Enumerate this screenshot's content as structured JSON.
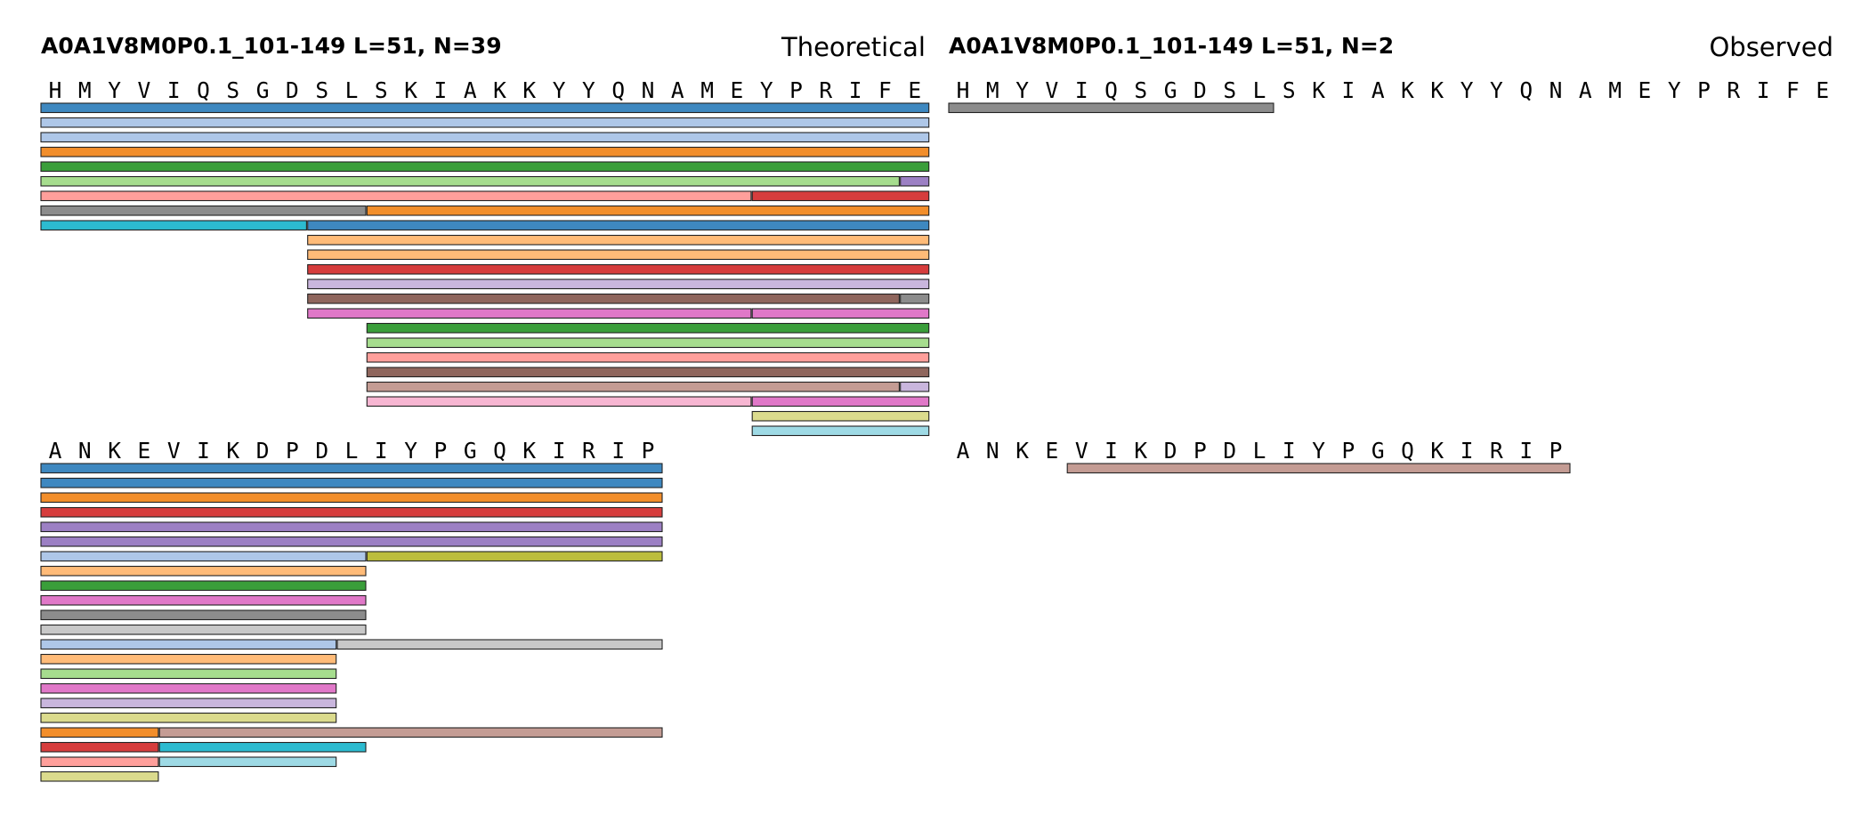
{
  "colors": {
    "blue": "#3e88c0",
    "lightblue": "#aec7e8",
    "orange": "#f28e2b",
    "lightorange": "#ffbb78",
    "green": "#3a9e3a",
    "lightgreen": "#a6dd8e",
    "red": "#d63d3d",
    "pink": "#ff9f9b",
    "purple": "#9c80c4",
    "lavender": "#c9b6dd",
    "brown": "#8f665d",
    "tan": "#c49c94",
    "magenta": "#e078c8",
    "lightpink": "#f7b6d2",
    "gray": "#8c8c8c",
    "lightgray": "#c8c8c8",
    "olive": "#bcbd3c",
    "khaki": "#dbdb8d",
    "cyan": "#2cbbd0",
    "lightcyan": "#9edae5"
  },
  "panels": [
    {
      "id": "theoretical",
      "title": "A0A1V8M0P0.1_101-149  L=51, N=39",
      "label": "Theoretical",
      "rows": [
        {
          "sequence": "HMYVIQSGDSLSKIAKKYYQNAMEYPRIFE",
          "peptides": [
            {
              "start": 1,
              "end": 30,
              "lane": 0,
              "color": "blue"
            },
            {
              "start": 1,
              "end": 30,
              "lane": 1,
              "color": "lightblue"
            },
            {
              "start": 1,
              "end": 30,
              "lane": 2,
              "color": "lightblue"
            },
            {
              "start": 1,
              "end": 30,
              "lane": 3,
              "color": "orange"
            },
            {
              "start": 1,
              "end": 30,
              "lane": 4,
              "color": "green"
            },
            {
              "start": 1,
              "end": 29,
              "lane": 5,
              "color": "lightgreen"
            },
            {
              "start": 30,
              "end": 30,
              "lane": 5,
              "color": "purple"
            },
            {
              "start": 1,
              "end": 24,
              "lane": 6,
              "color": "pink"
            },
            {
              "start": 25,
              "end": 30,
              "lane": 6,
              "color": "red"
            },
            {
              "start": 1,
              "end": 11,
              "lane": 7,
              "color": "gray"
            },
            {
              "start": 12,
              "end": 30,
              "lane": 7,
              "color": "orange"
            },
            {
              "start": 1,
              "end": 9,
              "lane": 8,
              "color": "cyan"
            },
            {
              "start": 10,
              "end": 30,
              "lane": 8,
              "color": "blue"
            },
            {
              "start": 10,
              "end": 30,
              "lane": 9,
              "color": "lightorange"
            },
            {
              "start": 10,
              "end": 30,
              "lane": 10,
              "color": "lightorange"
            },
            {
              "start": 10,
              "end": 30,
              "lane": 11,
              "color": "red"
            },
            {
              "start": 10,
              "end": 30,
              "lane": 12,
              "color": "lavender"
            },
            {
              "start": 10,
              "end": 29,
              "lane": 13,
              "color": "brown"
            },
            {
              "start": 30,
              "end": 30,
              "lane": 13,
              "color": "gray"
            },
            {
              "start": 10,
              "end": 24,
              "lane": 14,
              "color": "magenta"
            },
            {
              "start": 25,
              "end": 30,
              "lane": 14,
              "color": "magenta"
            },
            {
              "start": 12,
              "end": 30,
              "lane": 15,
              "color": "green"
            },
            {
              "start": 12,
              "end": 30,
              "lane": 16,
              "color": "lightgreen"
            },
            {
              "start": 12,
              "end": 30,
              "lane": 17,
              "color": "pink"
            },
            {
              "start": 12,
              "end": 30,
              "lane": 18,
              "color": "brown"
            },
            {
              "start": 12,
              "end": 29,
              "lane": 19,
              "color": "tan"
            },
            {
              "start": 30,
              "end": 30,
              "lane": 19,
              "color": "lavender"
            },
            {
              "start": 12,
              "end": 24,
              "lane": 20,
              "color": "lightpink"
            },
            {
              "start": 25,
              "end": 30,
              "lane": 20,
              "color": "magenta"
            },
            {
              "start": 25,
              "end": 30,
              "lane": 21,
              "color": "khaki"
            },
            {
              "start": 25,
              "end": 30,
              "lane": 22,
              "color": "lightcyan"
            }
          ]
        },
        {
          "sequence": "ANKEVIKDPDLIYPGQKIRIP",
          "peptides": [
            {
              "start": 1,
              "end": 21,
              "lane": 0,
              "color": "blue"
            },
            {
              "start": 1,
              "end": 21,
              "lane": 1,
              "color": "blue"
            },
            {
              "start": 1,
              "end": 21,
              "lane": 2,
              "color": "orange"
            },
            {
              "start": 1,
              "end": 21,
              "lane": 3,
              "color": "red"
            },
            {
              "start": 1,
              "end": 21,
              "lane": 4,
              "color": "purple"
            },
            {
              "start": 1,
              "end": 21,
              "lane": 5,
              "color": "purple"
            },
            {
              "start": 1,
              "end": 11,
              "lane": 6,
              "color": "lightblue"
            },
            {
              "start": 12,
              "end": 21,
              "lane": 6,
              "color": "olive"
            },
            {
              "start": 1,
              "end": 11,
              "lane": 7,
              "color": "lightorange"
            },
            {
              "start": 1,
              "end": 11,
              "lane": 8,
              "color": "green"
            },
            {
              "start": 1,
              "end": 11,
              "lane": 9,
              "color": "magenta"
            },
            {
              "start": 1,
              "end": 11,
              "lane": 10,
              "color": "gray"
            },
            {
              "start": 1,
              "end": 11,
              "lane": 11,
              "color": "lightgray"
            },
            {
              "start": 1,
              "end": 10,
              "lane": 12,
              "color": "lightblue"
            },
            {
              "start": 11,
              "end": 21,
              "lane": 12,
              "color": "lightgray"
            },
            {
              "start": 1,
              "end": 10,
              "lane": 13,
              "color": "lightorange"
            },
            {
              "start": 1,
              "end": 10,
              "lane": 14,
              "color": "lightgreen"
            },
            {
              "start": 1,
              "end": 10,
              "lane": 15,
              "color": "magenta"
            },
            {
              "start": 1,
              "end": 10,
              "lane": 16,
              "color": "lavender"
            },
            {
              "start": 1,
              "end": 10,
              "lane": 17,
              "color": "khaki"
            },
            {
              "start": 1,
              "end": 4,
              "lane": 18,
              "color": "orange"
            },
            {
              "start": 5,
              "end": 21,
              "lane": 18,
              "color": "tan"
            },
            {
              "start": 1,
              "end": 4,
              "lane": 19,
              "color": "red"
            },
            {
              "start": 5,
              "end": 11,
              "lane": 19,
              "color": "cyan"
            },
            {
              "start": 1,
              "end": 4,
              "lane": 20,
              "color": "pink"
            },
            {
              "start": 5,
              "end": 10,
              "lane": 20,
              "color": "lightcyan"
            },
            {
              "start": 1,
              "end": 4,
              "lane": 21,
              "color": "khaki"
            }
          ]
        }
      ]
    },
    {
      "id": "observed",
      "title": "A0A1V8M0P0.1_101-149  L=51, N=2",
      "label": "Observed",
      "rows": [
        {
          "sequence": "HMYVIQSGDSLSKIAKKYYQNAMEYPRIFE",
          "peptides": [
            {
              "start": 1,
              "end": 11,
              "lane": 0,
              "color": "gray"
            }
          ]
        },
        {
          "sequence": "ANKEVIKDPDLIYPGQKIRIP",
          "peptides": [
            {
              "start": 5,
              "end": 21,
              "lane": 0,
              "color": "tan"
            }
          ]
        }
      ]
    }
  ]
}
